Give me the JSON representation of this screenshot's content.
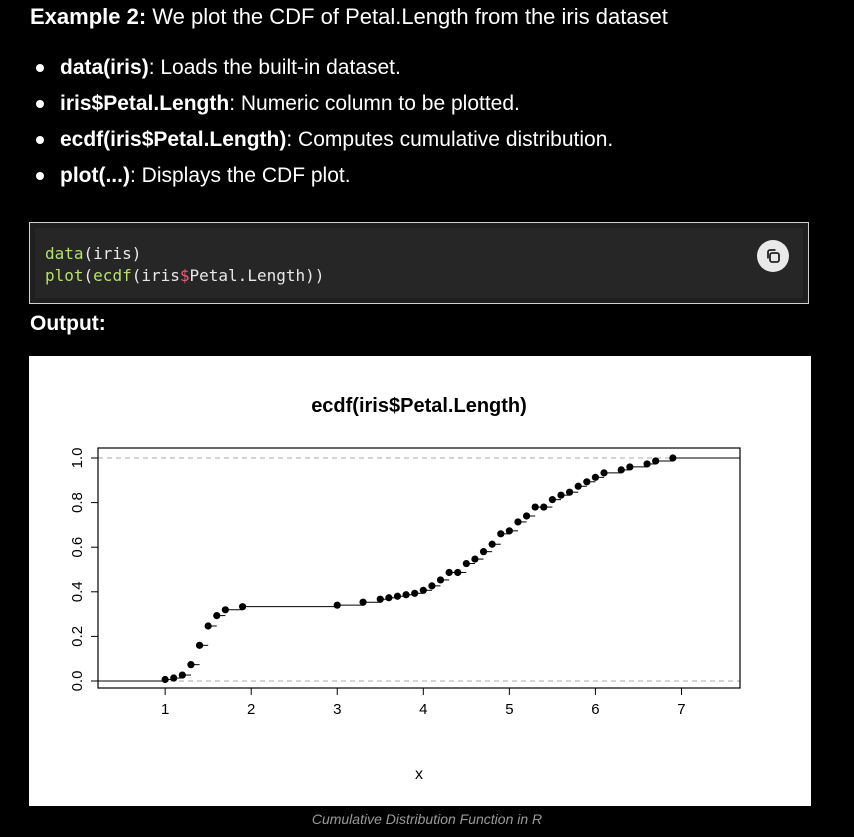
{
  "heading": {
    "bold": "Example 2:",
    "text": " We plot the CDF of Petal.Length from the iris dataset"
  },
  "bullets": [
    {
      "term": "data(iris)",
      "desc": ": Loads the built-in dataset."
    },
    {
      "term": "iris$Petal.Length",
      "desc": ": Numeric column to be plotted."
    },
    {
      "term": "ecdf(iris$Petal.Length)",
      "desc": ": Computes cumulative distribution."
    },
    {
      "term": "plot(...)",
      "desc": ": Displays the CDF plot."
    }
  ],
  "code": {
    "line1": {
      "fn": "data",
      "rest": "(iris)"
    },
    "line2": {
      "fn": "plot",
      "p1": "(",
      "fn2": "ecdf",
      "p2": "(iris",
      "op": "$",
      "p3": "Petal.Length))"
    },
    "copy_icon": "copy-icon"
  },
  "output_label": "Output:",
  "caption": "Cumulative Distribution Function in R",
  "chart_data": {
    "type": "step",
    "title": "ecdf(iris$Petal.Length)",
    "xlabel": "x",
    "ylabel": "",
    "xlim": [
      0.22,
      7.68
    ],
    "ylim": [
      0,
      1
    ],
    "xticks": [
      "1",
      "2",
      "3",
      "4",
      "5",
      "6",
      "7"
    ],
    "yticks": [
      "0.0",
      "0.2",
      "0.4",
      "0.6",
      "0.8",
      "1.0"
    ],
    "grid": false,
    "reference_lines": [
      0,
      1
    ],
    "x": [
      1.0,
      1.1,
      1.2,
      1.3,
      1.4,
      1.5,
      1.6,
      1.7,
      1.9,
      3.0,
      3.3,
      3.5,
      3.6,
      3.7,
      3.8,
      3.9,
      4.0,
      4.1,
      4.2,
      4.3,
      4.4,
      4.5,
      4.6,
      4.7,
      4.8,
      4.9,
      5.0,
      5.1,
      5.2,
      5.3,
      5.4,
      5.5,
      5.6,
      5.7,
      5.8,
      5.9,
      6.0,
      6.1,
      6.3,
      6.4,
      6.6,
      6.7,
      6.9
    ],
    "y": [
      0.0067,
      0.0133,
      0.0267,
      0.0733,
      0.16,
      0.2467,
      0.2933,
      0.3193,
      0.3333,
      0.34,
      0.3533,
      0.3667,
      0.3733,
      0.38,
      0.3867,
      0.3933,
      0.4067,
      0.4266,
      0.4533,
      0.4867,
      0.4867,
      0.5267,
      0.5467,
      0.58,
      0.6133,
      0.66,
      0.6733,
      0.7133,
      0.74,
      0.78,
      0.78,
      0.8133,
      0.8333,
      0.8467,
      0.8733,
      0.8933,
      0.9133,
      0.9333,
      0.9467,
      0.96,
      0.9733,
      0.9867,
      1.0
    ]
  }
}
